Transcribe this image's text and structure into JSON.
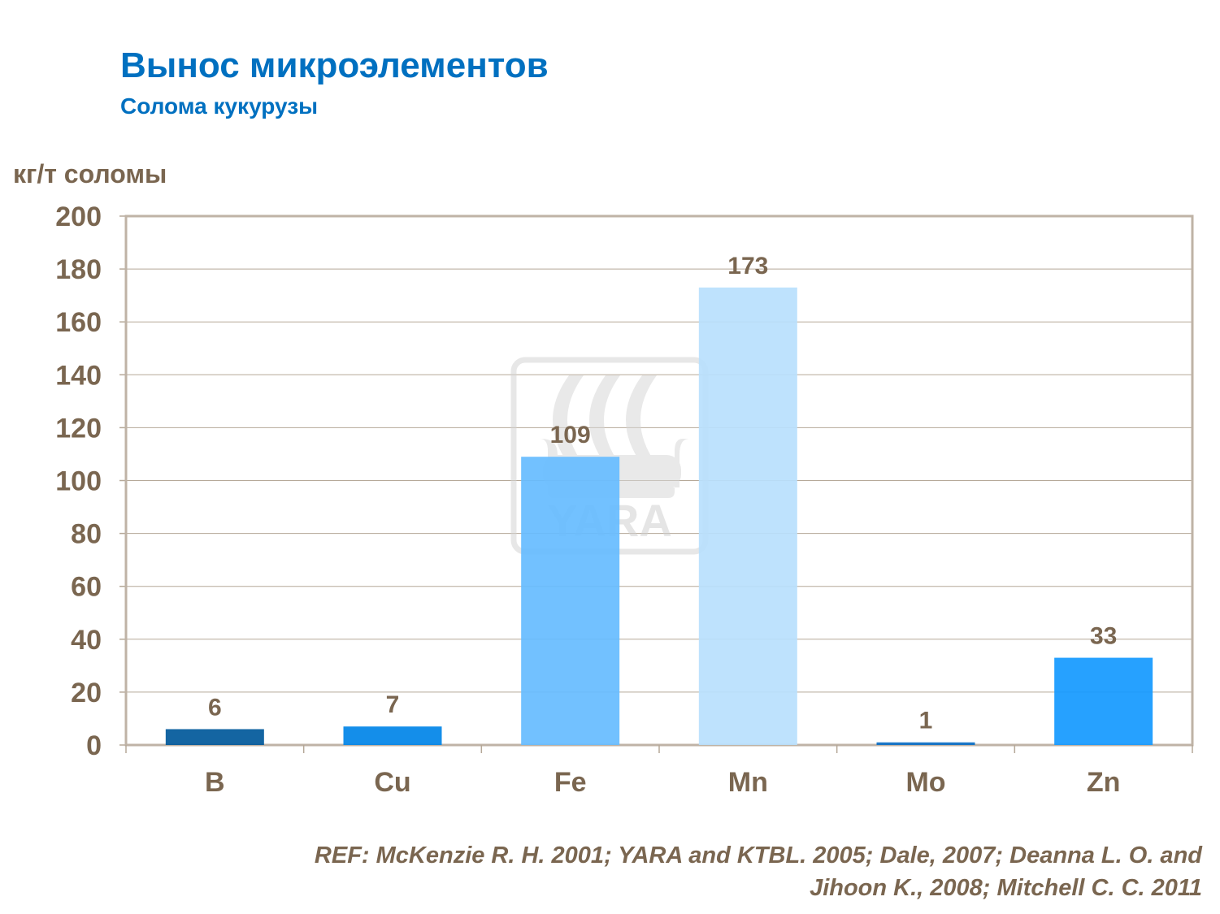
{
  "chart_data": {
    "type": "bar",
    "title": "Вынос микроэлементов",
    "subtitle": "Солома кукурузы",
    "ylabel": "кг/т соломы",
    "xlabel": "",
    "categories": [
      "B",
      "Cu",
      "Fe",
      "Mn",
      "Mo",
      "Zn"
    ],
    "values": [
      6,
      7,
      109,
      173,
      1,
      33
    ],
    "data_labels": [
      "6",
      "7",
      "109",
      "173",
      "1",
      "33"
    ],
    "bar_colors": [
      "#00589A",
      "#0084E8",
      "#66BCFF",
      "#B8DFFD",
      "#0A6EC4",
      "#1399FF"
    ],
    "ylim": [
      0,
      200
    ],
    "yticks": [
      0,
      20,
      40,
      60,
      80,
      100,
      120,
      140,
      160,
      180,
      200
    ],
    "grid": true,
    "legend": "none",
    "watermark": "YARA"
  },
  "reference": {
    "line1": "REF: McKenzie R. H. 2001;  YARA and KTBL. 2005;  Dale, 2007;  Deanna L. O. and",
    "line2": "Jihoon K.,   2008;  Mitchell C. C. 2011"
  },
  "colors": {
    "title": "#0070C0",
    "text": "#7A6650",
    "axis": "#BFB3A6",
    "grid": "#B5A898"
  }
}
